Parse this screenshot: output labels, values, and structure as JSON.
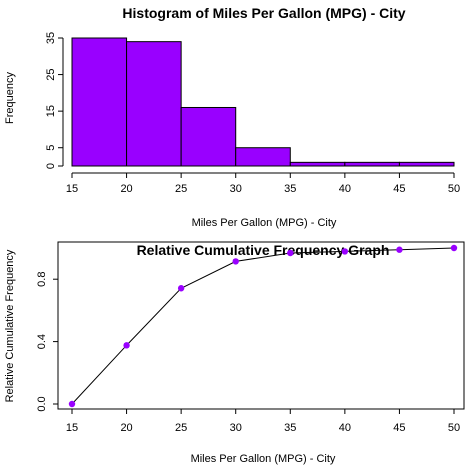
{
  "chart_data": [
    {
      "type": "bar",
      "title": "Histogram of Miles Per Gallon (MPG) - City",
      "xlabel": "Miles Per Gallon (MPG) - City",
      "ylabel": "Frequency",
      "bins": [
        [
          15,
          20
        ],
        [
          20,
          25
        ],
        [
          25,
          30
        ],
        [
          30,
          35
        ],
        [
          35,
          40
        ],
        [
          40,
          45
        ],
        [
          45,
          50
        ]
      ],
      "values": [
        35,
        34,
        16,
        5,
        1,
        1,
        1
      ],
      "xticks": [
        15,
        20,
        25,
        30,
        35,
        40,
        45,
        50
      ],
      "yticks": [
        0,
        5,
        15,
        25,
        35
      ],
      "xlim": [
        15,
        50
      ],
      "ylim": [
        0,
        35
      ],
      "bar_color": "#9900ff",
      "grid": false
    },
    {
      "type": "line",
      "title": "Relative Cumulative Frequency Graph",
      "xlabel": "Miles Per Gallon (MPG) - City",
      "ylabel": "Relative Cumulative Frequency",
      "x": [
        15,
        20,
        25,
        30,
        35,
        40,
        45,
        50
      ],
      "y": [
        0.0,
        0.376,
        0.742,
        0.914,
        0.968,
        0.978,
        0.989,
        1.0
      ],
      "xticks": [
        15,
        20,
        25,
        30,
        35,
        40,
        45,
        50
      ],
      "yticks": [
        0.0,
        0.4,
        0.8
      ],
      "xlim": [
        15,
        50
      ],
      "ylim": [
        0,
        1
      ],
      "point_color": "#9900ff",
      "grid": false
    }
  ]
}
